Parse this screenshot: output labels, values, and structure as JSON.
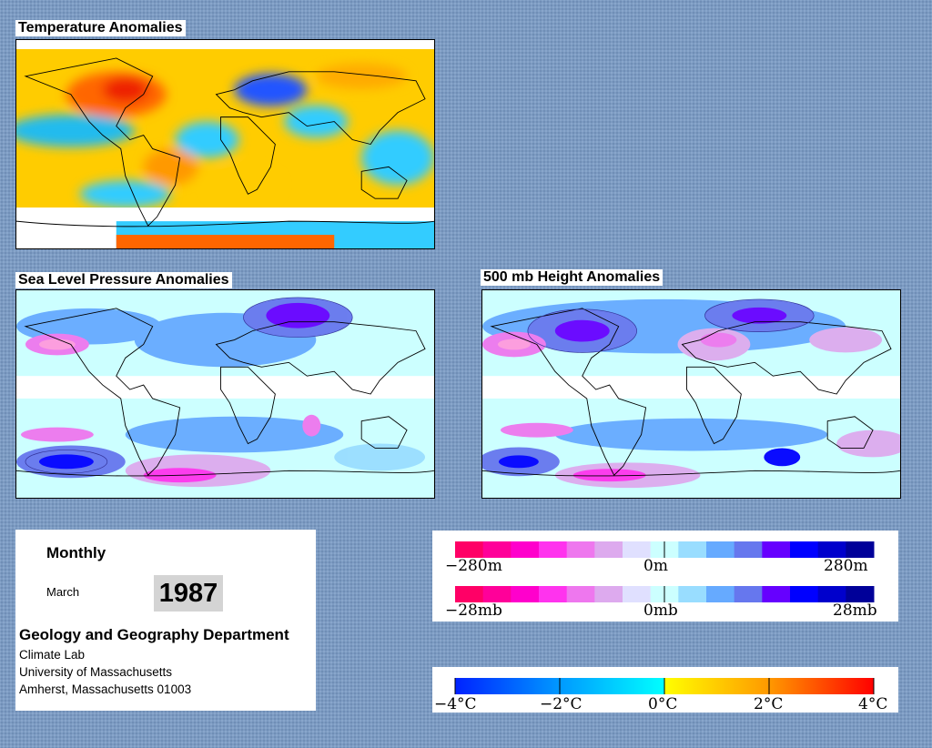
{
  "panels": {
    "temperature": {
      "title": "Temperature Anomalies"
    },
    "slp": {
      "title": "Sea Level Pressure Anomalies"
    },
    "height500": {
      "title": "500 mb Height Anomalies"
    }
  },
  "info": {
    "period": "Monthly",
    "month": "March",
    "year": "1987",
    "department": "Geology and Geography Department",
    "lab": "Climate Lab",
    "university": "University of Massachusetts",
    "address": "Amherst, Massachusetts 01003"
  },
  "pressure_legend": {
    "height_labels": [
      "−280m",
      "0m",
      "280m"
    ],
    "slp_labels": [
      "−28mb",
      "0mb",
      "28mb"
    ],
    "colors": [
      "#ff0066",
      "#ff0099",
      "#ff00cc",
      "#ff33ee",
      "#ee77ee",
      "#ddaaee",
      "#e0e0ff",
      "#ccffff",
      "#99ddff",
      "#66aaff",
      "#6677ee",
      "#6600ff",
      "#0000ff",
      "#0000cc",
      "#000099"
    ]
  },
  "temp_legend": {
    "labels": [
      "−4°C",
      "−2°C",
      "0°C",
      "2°C",
      "4°C"
    ],
    "gradient": [
      "#0022ff",
      "#0099ff",
      "#00ffff",
      "#ffff00",
      "#ff9900",
      "#ff0000"
    ]
  }
}
